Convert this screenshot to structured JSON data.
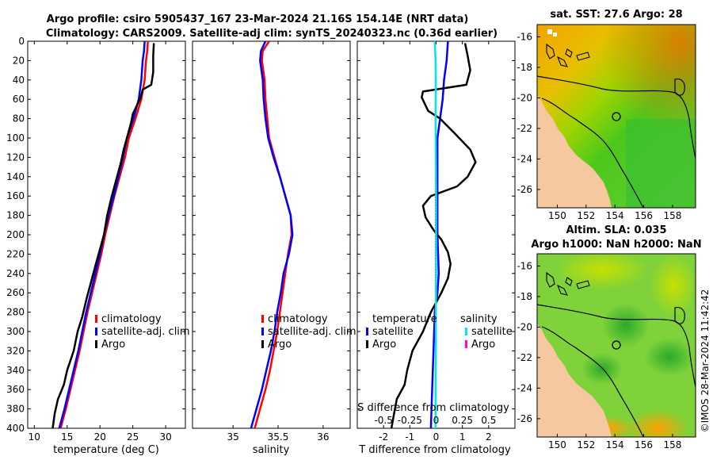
{
  "title": {
    "line1": "Argo profile: csiro 5905437_167 23-Mar-2024 21.16S 154.14E (NRT data)",
    "line2": "Climatology: CARS2009. Satellite-adj clim: synTS_20240323.nc (0.36d earlier)"
  },
  "credit": "©IMOS 28-Mar-2024 11:42:42",
  "colors": {
    "climatology": "#ff0000",
    "satellite": "#0000ff",
    "argo": "#000000",
    "sal_satellite": "#00e5ee",
    "sal_argo": "#ff00ff",
    "land": "#f5c8a0"
  },
  "chart_data": [
    {
      "type": "line",
      "title": "",
      "xlabel": "temperature (deg C)",
      "ylabel": "",
      "xlim": [
        9,
        33
      ],
      "ylim": [
        400,
        0
      ],
      "xticks": [
        "10",
        "15",
        "20",
        "25",
        "30"
      ],
      "yticks": [
        "0",
        "20",
        "40",
        "60",
        "80",
        "100",
        "120",
        "140",
        "160",
        "180",
        "200",
        "220",
        "240",
        "260",
        "280",
        "300",
        "320",
        "340",
        "360",
        "380",
        "400"
      ],
      "legend": {
        "placement": "lower-right",
        "entries": [
          "climatology",
          "satellite-adj. clim",
          "Argo"
        ]
      },
      "series": [
        {
          "name": "climatology",
          "color": "#ff0000",
          "points": [
            [
              27.3,
              0
            ],
            [
              27.2,
              10
            ],
            [
              27,
              20
            ],
            [
              26.8,
              40
            ],
            [
              26.3,
              60
            ],
            [
              25.4,
              80
            ],
            [
              24.4,
              100
            ],
            [
              23.8,
              120
            ],
            [
              23,
              140
            ],
            [
              22.2,
              160
            ],
            [
              21.5,
              180
            ],
            [
              20.8,
              200
            ],
            [
              20.2,
              220
            ],
            [
              19.5,
              240
            ],
            [
              18.8,
              260
            ],
            [
              18.1,
              280
            ],
            [
              17.5,
              300
            ],
            [
              16.9,
              320
            ],
            [
              16.2,
              340
            ],
            [
              15.5,
              360
            ],
            [
              14.8,
              380
            ],
            [
              14,
              400
            ]
          ]
        },
        {
          "name": "satellite-adj. clim",
          "color": "#0000ff",
          "points": [
            [
              26.8,
              0
            ],
            [
              26.7,
              10
            ],
            [
              26.5,
              20
            ],
            [
              26.3,
              40
            ],
            [
              25.9,
              60
            ],
            [
              25.1,
              80
            ],
            [
              24.1,
              100
            ],
            [
              23.5,
              120
            ],
            [
              22.8,
              140
            ],
            [
              22.1,
              160
            ],
            [
              21.3,
              180
            ],
            [
              20.6,
              200
            ],
            [
              20,
              220
            ],
            [
              19.3,
              240
            ],
            [
              18.6,
              260
            ],
            [
              17.9,
              280
            ],
            [
              17.3,
              300
            ],
            [
              16.7,
              320
            ],
            [
              16,
              340
            ],
            [
              15.3,
              360
            ],
            [
              14.6,
              380
            ],
            [
              13.8,
              400
            ]
          ]
        },
        {
          "name": "Argo",
          "color": "#000000",
          "points": [
            [
              28.2,
              2
            ],
            [
              28.1,
              15
            ],
            [
              28.1,
              32
            ],
            [
              27.8,
              45
            ],
            [
              26.5,
              50
            ],
            [
              26.2,
              58
            ],
            [
              25.5,
              68
            ],
            [
              25,
              75
            ],
            [
              24.7,
              85
            ],
            [
              24.1,
              100
            ],
            [
              23.6,
              112
            ],
            [
              23.2,
              125
            ],
            [
              22.6,
              140
            ],
            [
              21.8,
              160
            ],
            [
              21.1,
              180
            ],
            [
              20.6,
              200
            ],
            [
              20,
              215
            ],
            [
              19.3,
              232
            ],
            [
              18.6,
              250
            ],
            [
              18,
              265
            ],
            [
              17.3,
              285
            ],
            [
              16.6,
              300
            ],
            [
              16,
              320
            ],
            [
              15,
              340
            ],
            [
              14.5,
              355
            ],
            [
              13.6,
              370
            ],
            [
              13.1,
              385
            ],
            [
              12.8,
              400
            ]
          ]
        }
      ]
    },
    {
      "type": "line",
      "title": "",
      "xlabel": "salinity",
      "ylabel": "",
      "xlim": [
        34.55,
        36.3
      ],
      "ylim": [
        400,
        0
      ],
      "xticks": [
        "35",
        "35.5",
        "36"
      ],
      "legend": {
        "placement": "lower-right",
        "entries": [
          "climatology",
          "satellite-adj. clim",
          "Argo"
        ]
      },
      "series": [
        {
          "name": "climatology",
          "color": "#ff0000",
          "points": [
            [
              35.4,
              0
            ],
            [
              35.33,
              10
            ],
            [
              35.32,
              20
            ],
            [
              35.35,
              40
            ],
            [
              35.36,
              60
            ],
            [
              35.38,
              80
            ],
            [
              35.4,
              100
            ],
            [
              35.46,
              120
            ],
            [
              35.52,
              140
            ],
            [
              35.58,
              160
            ],
            [
              35.64,
              180
            ],
            [
              35.65,
              200
            ],
            [
              35.61,
              220
            ],
            [
              35.58,
              240
            ],
            [
              35.55,
              260
            ],
            [
              35.52,
              280
            ],
            [
              35.49,
              300
            ],
            [
              35.45,
              320
            ],
            [
              35.41,
              340
            ],
            [
              35.36,
              360
            ],
            [
              35.3,
              380
            ],
            [
              35.24,
              400
            ]
          ]
        },
        {
          "name": "satellite-adj. clim",
          "color": "#0000ff",
          "points": [
            [
              35.36,
              0
            ],
            [
              35.31,
              10
            ],
            [
              35.3,
              20
            ],
            [
              35.33,
              40
            ],
            [
              35.34,
              60
            ],
            [
              35.36,
              80
            ],
            [
              35.39,
              100
            ],
            [
              35.45,
              120
            ],
            [
              35.52,
              140
            ],
            [
              35.58,
              160
            ],
            [
              35.64,
              180
            ],
            [
              35.66,
              200
            ],
            [
              35.62,
              220
            ],
            [
              35.56,
              240
            ],
            [
              35.53,
              260
            ],
            [
              35.49,
              280
            ],
            [
              35.46,
              300
            ],
            [
              35.42,
              320
            ],
            [
              35.37,
              340
            ],
            [
              35.32,
              360
            ],
            [
              35.26,
              380
            ],
            [
              35.2,
              400
            ]
          ]
        }
      ]
    },
    {
      "type": "line",
      "title": "",
      "xlabel": "T difference from climatology",
      "ylabel": "",
      "xlim": [
        -3,
        3
      ],
      "ylim": [
        400,
        0
      ],
      "xticks": [
        "-2",
        "-1",
        "0",
        "1",
        "2"
      ],
      "secondary_xlabel": "S difference from climatology",
      "secondary_xticks": [
        "-0.5",
        "-0.25",
        "0",
        "0.25",
        "0.5"
      ],
      "legend": {
        "placement": "lower-center",
        "headings": [
          "temperature",
          "salinity"
        ],
        "temperature_entries": [
          "satellite",
          "Argo"
        ],
        "salinity_entries": [
          "satellite",
          "Argo"
        ]
      },
      "series": [
        {
          "name": "temperature satellite",
          "color": "#0000ff",
          "points": [
            [
              0.45,
              0
            ],
            [
              0.4,
              20
            ],
            [
              0.3,
              40
            ],
            [
              0.25,
              60
            ],
            [
              0.15,
              80
            ],
            [
              0.05,
              100
            ],
            [
              0.05,
              140
            ],
            [
              0.05,
              200
            ],
            [
              0.1,
              240
            ],
            [
              0.05,
              260
            ],
            [
              -0.05,
              280
            ],
            [
              -0.1,
              320
            ],
            [
              -0.15,
              360
            ],
            [
              -0.2,
              400
            ]
          ]
        },
        {
          "name": "temperature Argo",
          "color": "#000000",
          "points": [
            [
              1.1,
              2
            ],
            [
              1.2,
              15
            ],
            [
              1.3,
              30
            ],
            [
              1.15,
              45
            ],
            [
              -0.5,
              52
            ],
            [
              -0.55,
              58
            ],
            [
              -0.3,
              72
            ],
            [
              0.15,
              80
            ],
            [
              0.7,
              95
            ],
            [
              1.3,
              112
            ],
            [
              1.5,
              125
            ],
            [
              1.2,
              140
            ],
            [
              0.8,
              150
            ],
            [
              -0.2,
              160
            ],
            [
              -0.5,
              170
            ],
            [
              -0.4,
              182
            ],
            [
              -0.1,
              195
            ],
            [
              0.2,
              205
            ],
            [
              0.45,
              218
            ],
            [
              0.55,
              230
            ],
            [
              0.45,
              245
            ],
            [
              0.2,
              260
            ],
            [
              -0.2,
              280
            ],
            [
              -0.5,
              300
            ],
            [
              -0.9,
              320
            ],
            [
              -1.1,
              340
            ],
            [
              -1.2,
              355
            ],
            [
              -1.5,
              370
            ],
            [
              -1.6,
              385
            ],
            [
              -1.7,
              400
            ]
          ]
        },
        {
          "name": "salinity satellite",
          "color": "#00e5ee",
          "points": [
            [
              -0.05,
              0
            ],
            [
              -0.02,
              20
            ],
            [
              -0.01,
              40
            ],
            [
              -0.02,
              80
            ],
            [
              -0.01,
              120
            ],
            [
              0,
              160
            ],
            [
              0,
              200
            ],
            [
              0,
              240
            ],
            [
              -0.01,
              280
            ],
            [
              -0.01,
              320
            ],
            [
              -0.02,
              360
            ],
            [
              -0.02,
              400
            ]
          ]
        }
      ]
    }
  ],
  "maps": [
    {
      "title": "sat. SST: 27.6 Argo: 28",
      "xticks": [
        "150",
        "152",
        "154",
        "156",
        "158"
      ],
      "yticks": [
        "-16",
        "-18",
        "-20",
        "-22",
        "-24",
        "-26"
      ]
    },
    {
      "title_line1": "Altim. SLA: 0.035",
      "title_line2": "Argo h1000: NaN h2000: NaN",
      "xticks": [
        "150",
        "152",
        "154",
        "156",
        "158"
      ],
      "yticks": [
        "-16",
        "-18",
        "-20",
        "-22",
        "-24",
        "-26"
      ]
    }
  ],
  "icons": {
    "position_marker": "circle-marker-icon"
  }
}
